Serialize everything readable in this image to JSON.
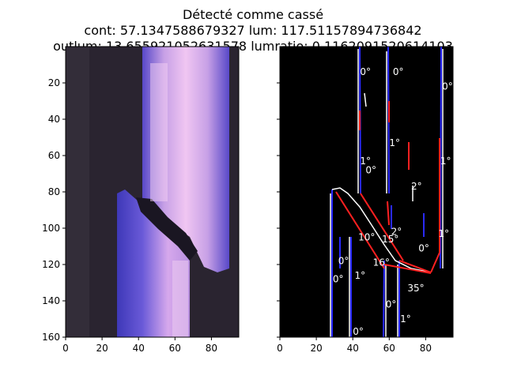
{
  "figure": {
    "title_lines": [
      "Détecté comme cassé",
      "cont: 57.1347588679327 lum: 117.51157894736842",
      "outlum: 13.655921052631578 lumratio: 0.1162091520614103"
    ]
  },
  "chart_data": [
    {
      "type": "image",
      "panel": "left",
      "description_colors": {
        "background": "#2c2630",
        "stripe_outer": "#6a5ad8",
        "stripe_core": "#e0b0e8",
        "gap": "#161420"
      },
      "xlim": [
        0,
        95
      ],
      "ylim": [
        160,
        0
      ],
      "xticks": [
        0,
        20,
        40,
        60,
        80
      ],
      "yticks": [
        20,
        40,
        60,
        80,
        100,
        120,
        140,
        160
      ]
    },
    {
      "type": "image",
      "panel": "right",
      "xlim": [
        0,
        95
      ],
      "ylim": [
        160,
        0
      ],
      "xticks": [
        0,
        20,
        40,
        60,
        80
      ],
      "yticks": [
        20,
        40,
        60,
        80,
        100,
        120,
        140,
        160
      ],
      "angle_labels": [
        {
          "text": "0°",
          "x": 44,
          "y": 14
        },
        {
          "text": "0°",
          "x": 62,
          "y": 14
        },
        {
          "text": "0°",
          "x": 89,
          "y": 22
        },
        {
          "text": "1°",
          "x": 60,
          "y": 53
        },
        {
          "text": "1°",
          "x": 44,
          "y": 63
        },
        {
          "text": "0°",
          "x": 47,
          "y": 68
        },
        {
          "text": "1°",
          "x": 88,
          "y": 63
        },
        {
          "text": "2°",
          "x": 72,
          "y": 77
        },
        {
          "text": "10°",
          "x": 43,
          "y": 105
        },
        {
          "text": "15°",
          "x": 56,
          "y": 106
        },
        {
          "text": "2°",
          "x": 61,
          "y": 102
        },
        {
          "text": "0°",
          "x": 76,
          "y": 111
        },
        {
          "text": "1°",
          "x": 87,
          "y": 103
        },
        {
          "text": "0°",
          "x": 32,
          "y": 118
        },
        {
          "text": "0°",
          "x": 29,
          "y": 128
        },
        {
          "text": "1°",
          "x": 41,
          "y": 126
        },
        {
          "text": "16°",
          "x": 51,
          "y": 119
        },
        {
          "text": "35°",
          "x": 70,
          "y": 133
        },
        {
          "text": "0°",
          "x": 58,
          "y": 142
        },
        {
          "text": "1°",
          "x": 66,
          "y": 150
        },
        {
          "text": "0°",
          "x": 40,
          "y": 157
        }
      ]
    }
  ]
}
